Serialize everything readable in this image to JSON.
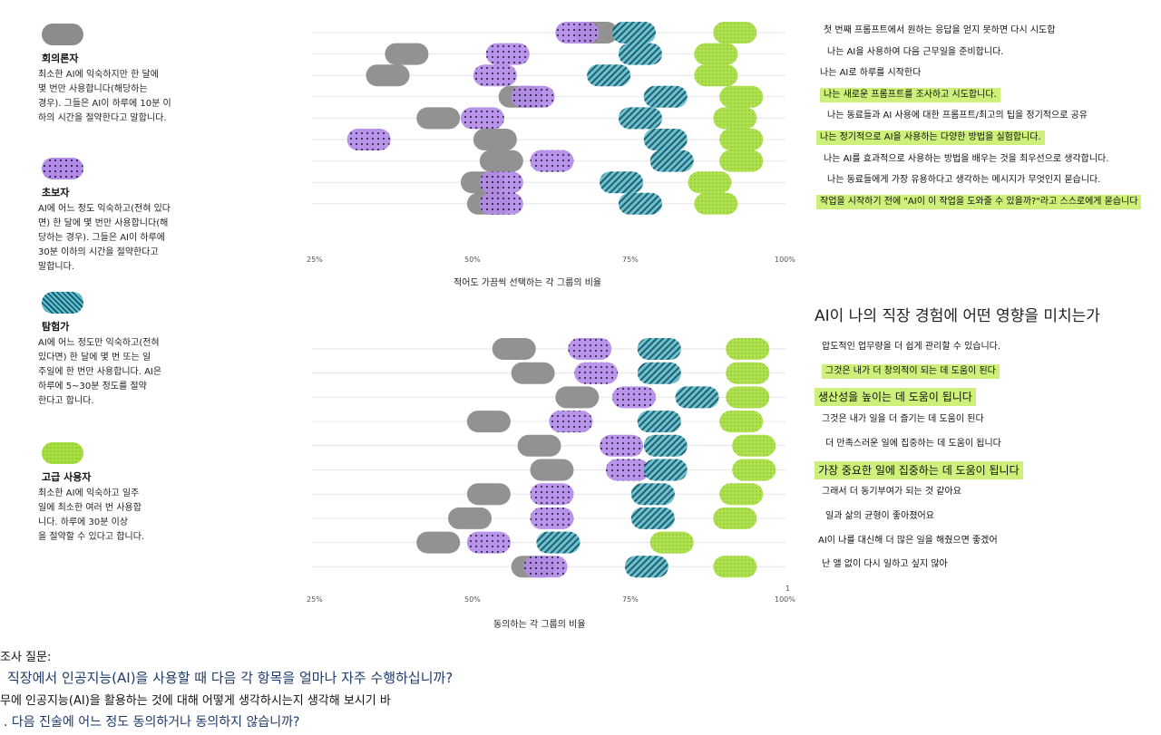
{
  "legend": [
    {
      "key": "skeptic",
      "name": "회의론자",
      "desc": [
        "최소한 AI에 익숙하지만 한 달에",
        "몇 번만 사용합니다(해당하는",
        "경우). 그들은 AI이 하루에 10분 이",
        "하의 시간을 절약한다고 말합니다."
      ]
    },
    {
      "key": "beginner",
      "name": "초보자",
      "desc": [
        "AI에 어느 정도 익숙하고(전혀 있다",
        "면) 한 달에 몇 번만 사용합니다(해",
        "당하는 경우). 그들은 AI이 하루에",
        "30분 이하의 시간을 절약한다고",
        "말합니다."
      ]
    },
    {
      "key": "explorer",
      "name": "탐험가",
      "desc": [
        "AI에 어느 정도만 익숙하고(전혀",
        "있다면) 한 달에 몇 번 또는 일",
        "주일에 한 번만 사용합니다. AI은",
        "하루에 5~30분 정도를 절약",
        "한다고 합니다."
      ]
    },
    {
      "key": "advanced",
      "name": "고급 사용자",
      "desc": [
        "최소한 AI에 익숙하고 일주",
        "일에 최소한 여러 번 사용합",
        "니다. 하루에 30분 이상",
        "을 절약할 수 있다고 합니다."
      ]
    }
  ],
  "colors": {
    "skeptic": "#8c8c8c",
    "beginner": "#b28be8",
    "explorer": "#5bbdd0",
    "advanced": "#a6de3f",
    "highlight": "#ccf07a"
  },
  "chart_data": [
    {
      "type": "scatter",
      "xlabel": "적어도 가끔씩 선택하는 각 그룹의 비율",
      "xlim": [
        25,
        100
      ],
      "xticks": [
        "25%",
        "50%",
        "75%",
        "100%"
      ],
      "categories": [
        "첫 번째 프롬프트에서 원하는 응답을 얻지 못하면 다시 시도합",
        "나는 AI을 사용하여 다음 근무일을 준비합니다.",
        "나는 AI로 하루를 시작한다",
        "나는 새로운 프롬프트를 조사하고 시도합니다.",
        "나는 동료들과 AI 사용에 대한 프롬프트/최고의 팁을 정기적으로 공유",
        "나는 정기적으로 AI을 사용하는 다양한 방법을 실험합니다.",
        "나는 AI를 효과적으로 사용하는 방법을 배우는 것을 최우선으로 생각합니다.",
        "나는 동료들에게 가장 유용하다고 생각하는 메시지가 무엇인지 묻습니다.",
        "작업을 시작하기 전에 \"AI이 이 작업을 도와줄 수 있을까?\"라고 스스로에게 묻습니다"
      ],
      "highlight": [
        false,
        false,
        false,
        true,
        false,
        true,
        false,
        false,
        true
      ],
      "series": [
        {
          "name": "회의론자",
          "values": [
            70,
            40,
            37,
            58,
            45,
            54,
            55,
            52,
            53
          ]
        },
        {
          "name": "초보자",
          "values": [
            67,
            56,
            54,
            60,
            52,
            34,
            63,
            55,
            55
          ]
        },
        {
          "name": "탐험가",
          "values": [
            76,
            77,
            72,
            81,
            77,
            81,
            82,
            74,
            77
          ]
        },
        {
          "name": "고급 사용자",
          "values": [
            92,
            89,
            89,
            93,
            92,
            93,
            93,
            88,
            89
          ]
        }
      ]
    },
    {
      "type": "scatter",
      "title": "AI이 나의 직장 경험에 어떤 영향을 미치는가",
      "xlabel": "동의하는 각 그룹의 비율",
      "xlim": [
        25,
        100
      ],
      "xticks": [
        "25%",
        "50%",
        "75%",
        "100%"
      ],
      "extra_tick": "1",
      "categories": [
        "압도적인 업무량을 더 쉽게 관리할 수 있습니다.",
        "그것은 내가 더 창의적이 되는 데 도움이 된다",
        "생산성을 높이는 데 도움이 됩니다",
        "그것은 내가 일을 더 즐기는 데 도움이 된다",
        "더 만족스러운 일에 집중하는 데 도움이 됩니다",
        "가장 중요한 일에 집중하는 데 도움이 됩니다",
        "그래서 더 동기부여가 되는 것 같아요",
        "일과 삶의 균형이 좋아졌어요",
        "AI이 나를 대신해 더 많은 일을 해줬으면 좋겠어",
        "난 앨 없이 다시 일하고 싶지 않아"
      ],
      "highlight": [
        false,
        true,
        true,
        false,
        false,
        true,
        false,
        false,
        false,
        false
      ],
      "series": [
        {
          "name": "회의론자",
          "values": [
            57,
            60,
            67,
            53,
            61,
            63,
            53,
            50,
            45,
            60
          ]
        },
        {
          "name": "초보자",
          "values": [
            69,
            70,
            76,
            66,
            74,
            75,
            63,
            63,
            53,
            62
          ]
        },
        {
          "name": "탐험가",
          "values": [
            80,
            80,
            86,
            80,
            81,
            81,
            79,
            79,
            64,
            78
          ]
        },
        {
          "name": "고급 사용자",
          "values": [
            94,
            94,
            94,
            93,
            95,
            95,
            93,
            92,
            82,
            92
          ]
        }
      ]
    }
  ],
  "survey": {
    "heading": "조사 질문:",
    "q1": "직장에서 인공지능(AI)을 사용할 때 다음 각 항목을 얼마나 자주 수행하십니까?",
    "q2": "무에 인공지능(AI)을 활용하는 것에 대해 어떻게 생각하시는지 생각해 보시기 바",
    "q3": ". 다음 진술에 어느 정도 동의하거나 동의하지 않습니까?"
  }
}
